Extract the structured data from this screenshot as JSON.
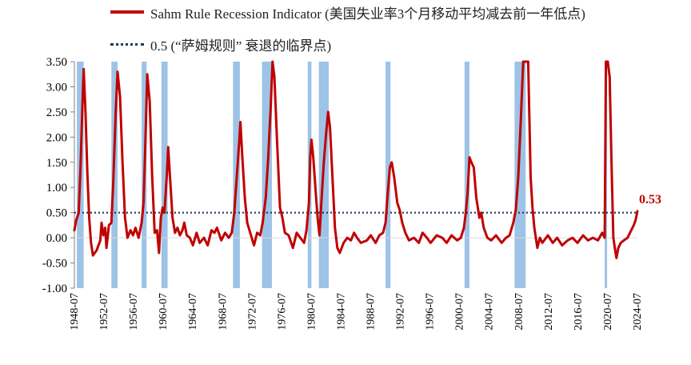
{
  "legend": {
    "series_label": "Sahm Rule Recession Indicator (美国失业率3个月移动平均减去前一年低点)",
    "threshold_label": "0.5 (“萨姆规则” 衰退的临界点)"
  },
  "colors": {
    "series": "#c00000",
    "threshold": "#1f3864",
    "recession": "#9dc3e6",
    "end_label": "#c00000"
  },
  "chart_data": {
    "type": "line",
    "title": "",
    "xlabel": "",
    "ylabel": "",
    "ylim": [
      -1.0,
      3.5
    ],
    "xlim": [
      "1948-07",
      "2024-07"
    ],
    "yticks": [
      "-1.00",
      "-0.50",
      "0.00",
      "0.50",
      "1.00",
      "1.50",
      "2.00",
      "2.50",
      "3.00",
      "3.50"
    ],
    "xticks": [
      "1948-07",
      "1952-07",
      "1956-07",
      "1960-07",
      "1964-07",
      "1968-07",
      "1972-07",
      "1976-07",
      "1980-07",
      "1984-07",
      "1988-07",
      "1992-07",
      "1996-07",
      "2000-07",
      "2004-07",
      "2008-07",
      "2012-07",
      "2016-07",
      "2020-07",
      "2024-07"
    ],
    "grid": false,
    "legend_position": "top",
    "threshold": 0.5,
    "end_label": "0.53",
    "recessions": [
      [
        "1948-11",
        "1949-10"
      ],
      [
        "1953-07",
        "1954-05"
      ],
      [
        "1957-08",
        "1958-04"
      ],
      [
        "1960-04",
        "1961-02"
      ],
      [
        "1969-12",
        "1970-11"
      ],
      [
        "1973-11",
        "1975-03"
      ],
      [
        "1980-01",
        "1980-07"
      ],
      [
        "1981-07",
        "1982-11"
      ],
      [
        "1990-07",
        "1991-03"
      ],
      [
        "2001-03",
        "2001-11"
      ],
      [
        "2007-12",
        "2009-06"
      ],
      [
        "2020-02",
        "2020-04"
      ]
    ],
    "series": [
      {
        "name": "Sahm Rule Recession Indicator",
        "points": [
          [
            "1948-07",
            0.15
          ],
          [
            "1948-10",
            0.35
          ],
          [
            "1949-02",
            0.5
          ],
          [
            "1949-05",
            1.4
          ],
          [
            "1949-08",
            2.6
          ],
          [
            "1949-10",
            3.35
          ],
          [
            "1950-01",
            2.5
          ],
          [
            "1950-04",
            1.3
          ],
          [
            "1950-07",
            0.4
          ],
          [
            "1950-10",
            -0.1
          ],
          [
            "1951-01",
            -0.35
          ],
          [
            "1951-07",
            -0.25
          ],
          [
            "1952-01",
            -0.05
          ],
          [
            "1952-03",
            0.3
          ],
          [
            "1952-06",
            0.05
          ],
          [
            "1952-09",
            0.2
          ],
          [
            "1952-11",
            -0.2
          ],
          [
            "1953-03",
            0.25
          ],
          [
            "1953-07",
            0.3
          ],
          [
            "1953-10",
            1.1
          ],
          [
            "1954-02",
            2.5
          ],
          [
            "1954-05",
            3.3
          ],
          [
            "1954-09",
            2.8
          ],
          [
            "1955-01",
            1.5
          ],
          [
            "1955-05",
            0.4
          ],
          [
            "1955-09",
            0.0
          ],
          [
            "1956-02",
            0.15
          ],
          [
            "1956-06",
            0.05
          ],
          [
            "1956-10",
            0.2
          ],
          [
            "1957-03",
            0.0
          ],
          [
            "1957-08",
            0.3
          ],
          [
            "1957-11",
            0.7
          ],
          [
            "1958-02",
            1.9
          ],
          [
            "1958-05",
            3.25
          ],
          [
            "1958-09",
            2.7
          ],
          [
            "1959-01",
            1.2
          ],
          [
            "1959-05",
            0.1
          ],
          [
            "1959-09",
            0.15
          ],
          [
            "1959-12",
            -0.3
          ],
          [
            "1960-03",
            0.4
          ],
          [
            "1960-06",
            0.6
          ],
          [
            "1960-09",
            0.5
          ],
          [
            "1961-01",
            1.3
          ],
          [
            "1961-03",
            1.8
          ],
          [
            "1961-06",
            1.2
          ],
          [
            "1961-10",
            0.4
          ],
          [
            "1962-02",
            0.1
          ],
          [
            "1962-06",
            0.2
          ],
          [
            "1962-10",
            0.05
          ],
          [
            "1963-02",
            0.15
          ],
          [
            "1963-05",
            0.3
          ],
          [
            "1963-09",
            0.05
          ],
          [
            "1964-02",
            0.0
          ],
          [
            "1964-07",
            -0.15
          ],
          [
            "1965-01",
            0.1
          ],
          [
            "1965-06",
            -0.1
          ],
          [
            "1966-01",
            0.0
          ],
          [
            "1966-07",
            -0.15
          ],
          [
            "1967-01",
            0.15
          ],
          [
            "1967-06",
            0.1
          ],
          [
            "1967-10",
            0.2
          ],
          [
            "1968-05",
            -0.05
          ],
          [
            "1968-11",
            0.1
          ],
          [
            "1969-05",
            0.0
          ],
          [
            "1969-10",
            0.1
          ],
          [
            "1970-02",
            0.5
          ],
          [
            "1970-06",
            1.2
          ],
          [
            "1970-10",
            1.9
          ],
          [
            "1970-12",
            2.3
          ],
          [
            "1971-03",
            1.6
          ],
          [
            "1971-07",
            0.8
          ],
          [
            "1971-11",
            0.3
          ],
          [
            "1972-05",
            0.05
          ],
          [
            "1972-10",
            -0.15
          ],
          [
            "1973-03",
            0.1
          ],
          [
            "1973-08",
            0.05
          ],
          [
            "1973-12",
            0.3
          ],
          [
            "1974-05",
            0.8
          ],
          [
            "1974-09",
            1.6
          ],
          [
            "1975-01",
            2.6
          ],
          [
            "1975-04",
            3.5
          ],
          [
            "1975-07",
            3.2
          ],
          [
            "1975-11",
            2.0
          ],
          [
            "1976-04",
            0.6
          ],
          [
            "1976-08",
            0.4
          ],
          [
            "1976-12",
            0.1
          ],
          [
            "1977-06",
            0.05
          ],
          [
            "1978-01",
            -0.2
          ],
          [
            "1978-07",
            0.1
          ],
          [
            "1979-01",
            0.0
          ],
          [
            "1979-07",
            -0.1
          ],
          [
            "1979-11",
            0.15
          ],
          [
            "1980-03",
            0.7
          ],
          [
            "1980-05",
            1.6
          ],
          [
            "1980-07",
            1.95
          ],
          [
            "1980-10",
            1.6
          ],
          [
            "1981-02",
            0.9
          ],
          [
            "1981-05",
            0.4
          ],
          [
            "1981-08",
            0.05
          ],
          [
            "1981-11",
            0.7
          ],
          [
            "1982-03",
            1.5
          ],
          [
            "1982-07",
            2.1
          ],
          [
            "1982-10",
            2.5
          ],
          [
            "1983-01",
            2.2
          ],
          [
            "1983-05",
            1.2
          ],
          [
            "1983-09",
            0.2
          ],
          [
            "1984-01",
            -0.2
          ],
          [
            "1984-05",
            -0.3
          ],
          [
            "1984-11",
            -0.1
          ],
          [
            "1985-05",
            0.0
          ],
          [
            "1985-11",
            -0.05
          ],
          [
            "1986-04",
            0.1
          ],
          [
            "1986-09",
            0.0
          ],
          [
            "1987-03",
            -0.1
          ],
          [
            "1988-01",
            -0.05
          ],
          [
            "1988-07",
            0.05
          ],
          [
            "1989-03",
            -0.1
          ],
          [
            "1989-09",
            0.05
          ],
          [
            "1990-03",
            0.1
          ],
          [
            "1990-07",
            0.3
          ],
          [
            "1990-10",
            0.8
          ],
          [
            "1991-02",
            1.4
          ],
          [
            "1991-05",
            1.5
          ],
          [
            "1991-09",
            1.2
          ],
          [
            "1992-02",
            0.7
          ],
          [
            "1992-06",
            0.55
          ],
          [
            "1992-10",
            0.3
          ],
          [
            "1993-03",
            0.1
          ],
          [
            "1993-09",
            -0.05
          ],
          [
            "1994-05",
            0.0
          ],
          [
            "1995-01",
            -0.1
          ],
          [
            "1995-07",
            0.1
          ],
          [
            "1996-02",
            0.0
          ],
          [
            "1996-08",
            -0.1
          ],
          [
            "1997-06",
            0.05
          ],
          [
            "1998-03",
            0.0
          ],
          [
            "1998-10",
            -0.1
          ],
          [
            "1999-06",
            0.05
          ],
          [
            "2000-03",
            -0.05
          ],
          [
            "2000-09",
            0.0
          ],
          [
            "2001-02",
            0.2
          ],
          [
            "2001-05",
            0.5
          ],
          [
            "2001-08",
            0.9
          ],
          [
            "2001-11",
            1.6
          ],
          [
            "2002-02",
            1.5
          ],
          [
            "2002-06",
            1.4
          ],
          [
            "2002-10",
            0.8
          ],
          [
            "2003-03",
            0.4
          ],
          [
            "2003-06",
            0.5
          ],
          [
            "2003-10",
            0.2
          ],
          [
            "2004-04",
            0.0
          ],
          [
            "2004-10",
            -0.05
          ],
          [
            "2005-06",
            0.05
          ],
          [
            "2006-03",
            -0.1
          ],
          [
            "2006-10",
            0.0
          ],
          [
            "2007-04",
            0.05
          ],
          [
            "2007-10",
            0.3
          ],
          [
            "2008-02",
            0.55
          ],
          [
            "2008-06",
            1.2
          ],
          [
            "2008-10",
            2.3
          ],
          [
            "2009-02",
            3.5
          ],
          [
            "2009-05",
            3.5
          ],
          [
            "2009-08",
            3.5
          ],
          [
            "2009-10",
            3.5
          ],
          [
            "2010-02",
            1.2
          ],
          [
            "2010-05",
            0.6
          ],
          [
            "2010-08",
            0.2
          ],
          [
            "2011-01",
            -0.2
          ],
          [
            "2011-05",
            0.0
          ],
          [
            "2011-09",
            -0.1
          ],
          [
            "2012-06",
            0.05
          ],
          [
            "2013-02",
            -0.1
          ],
          [
            "2013-09",
            0.0
          ],
          [
            "2014-05",
            -0.15
          ],
          [
            "2015-02",
            -0.05
          ],
          [
            "2015-10",
            0.0
          ],
          [
            "2016-06",
            -0.1
          ],
          [
            "2017-03",
            0.05
          ],
          [
            "2017-11",
            -0.05
          ],
          [
            "2018-07",
            0.0
          ],
          [
            "2019-03",
            -0.05
          ],
          [
            "2019-10",
            0.1
          ],
          [
            "2020-02",
            0.0
          ],
          [
            "2020-04",
            3.5
          ],
          [
            "2020-07",
            3.5
          ],
          [
            "2020-10",
            3.2
          ],
          [
            "2021-01",
            1.5
          ],
          [
            "2021-04",
            0.0
          ],
          [
            "2021-07",
            -0.25
          ],
          [
            "2021-09",
            -0.4
          ],
          [
            "2021-12",
            -0.2
          ],
          [
            "2022-04",
            -0.1
          ],
          [
            "2022-09",
            -0.05
          ],
          [
            "2023-03",
            0.0
          ],
          [
            "2023-09",
            0.15
          ],
          [
            "2024-01",
            0.25
          ],
          [
            "2024-04",
            0.35
          ],
          [
            "2024-07",
            0.53
          ]
        ]
      }
    ]
  }
}
